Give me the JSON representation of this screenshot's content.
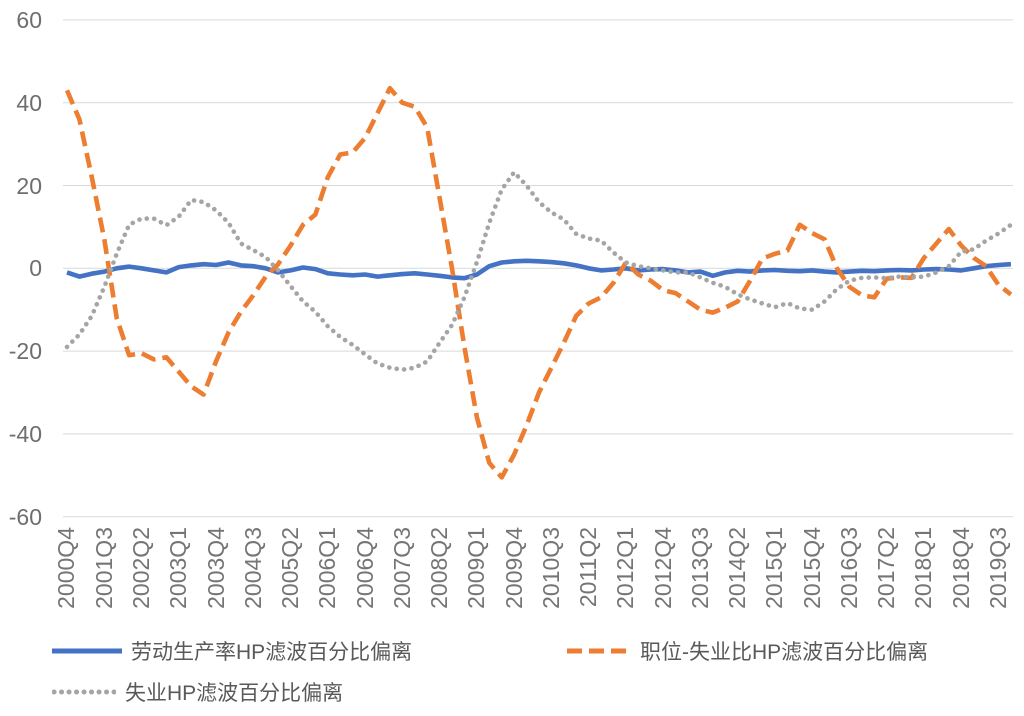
{
  "colors": {
    "background": "#ffffff",
    "gridline": "#d9d9d9",
    "axis_label_text": "#6e6e6e",
    "legend_text": "#595959",
    "series_blue": "#4472c4",
    "series_orange": "#ed7d31",
    "series_gray": "#a5a5a5"
  },
  "chart_data": {
    "type": "line",
    "title": "",
    "xlabel": "",
    "ylabel": "",
    "ylim": [
      -60,
      60
    ],
    "ytick_step": 20,
    "y_ticks": [
      60,
      40,
      20,
      0,
      -20,
      -40,
      -60
    ],
    "y_tick_labels": [
      "60",
      "40",
      "20",
      "0",
      "-20",
      "-40",
      "-60"
    ],
    "grid": "horizontal",
    "legend_position": "bottom",
    "x_tick_labels": [
      "2000Q4",
      "2001Q3",
      "2002Q2",
      "2003Q1",
      "2003Q4",
      "2004Q3",
      "2005Q2",
      "2006Q1",
      "2006Q4",
      "2007Q3",
      "2008Q2",
      "2009Q1",
      "2009Q4",
      "2010Q3",
      "2011Q2",
      "2012Q1",
      "2012Q4",
      "2013Q3",
      "2014Q2",
      "2015Q1",
      "2015Q4",
      "2016Q3",
      "2017Q2",
      "2018Q1",
      "2018Q4",
      "2019Q3"
    ],
    "x_tick_every_n_quarters": 3,
    "categories": [
      "2000Q4",
      "2001Q1",
      "2001Q2",
      "2001Q3",
      "2001Q4",
      "2002Q1",
      "2002Q2",
      "2002Q3",
      "2002Q4",
      "2003Q1",
      "2003Q2",
      "2003Q3",
      "2003Q4",
      "2004Q1",
      "2004Q2",
      "2004Q3",
      "2004Q4",
      "2005Q1",
      "2005Q2",
      "2005Q3",
      "2005Q4",
      "2006Q1",
      "2006Q2",
      "2006Q3",
      "2006Q4",
      "2007Q1",
      "2007Q2",
      "2007Q3",
      "2007Q4",
      "2008Q1",
      "2008Q2",
      "2008Q3",
      "2008Q4",
      "2009Q1",
      "2009Q2",
      "2009Q3",
      "2009Q4",
      "2010Q1",
      "2010Q2",
      "2010Q3",
      "2010Q4",
      "2011Q1",
      "2011Q2",
      "2011Q3",
      "2011Q4",
      "2012Q1",
      "2012Q2",
      "2012Q3",
      "2012Q4",
      "2013Q1",
      "2013Q2",
      "2013Q3",
      "2013Q4",
      "2014Q1",
      "2014Q2",
      "2014Q3",
      "2014Q4",
      "2015Q1",
      "2015Q2",
      "2015Q3",
      "2015Q4",
      "2016Q1",
      "2016Q2",
      "2016Q3",
      "2016Q4",
      "2017Q1",
      "2017Q2",
      "2017Q3",
      "2017Q4",
      "2018Q1",
      "2018Q2",
      "2018Q3",
      "2018Q4",
      "2019Q1",
      "2019Q2",
      "2019Q3",
      "2019Q4"
    ],
    "series": [
      {
        "name": "劳动生产率HP滤波百分比偏离",
        "color": "#4472c4",
        "line_style": "solid",
        "values": [
          -1,
          -2,
          -1.3,
          -0.8,
          0,
          0.4,
          0,
          -0.5,
          -1,
          0.3,
          0.7,
          1,
          0.8,
          1.4,
          0.7,
          0.5,
          0,
          -1,
          -0.5,
          0.2,
          -0.2,
          -1.2,
          -1.5,
          -1.7,
          -1.5,
          -2,
          -1.7,
          -1.4,
          -1.2,
          -1.5,
          -1.8,
          -2.2,
          -2.4,
          -1.5,
          0.5,
          1.4,
          1.7,
          1.8,
          1.7,
          1.5,
          1.2,
          0.7,
          0,
          -0.5,
          -0.3,
          0,
          -0.5,
          -0.3,
          -0.2,
          -0.5,
          -1,
          -0.8,
          -1.8,
          -1,
          -0.6,
          -0.8,
          -0.5,
          -0.4,
          -0.6,
          -0.7,
          -0.5,
          -0.8,
          -1,
          -0.8,
          -0.6,
          -0.7,
          -0.5,
          -0.4,
          -0.5,
          -0.3,
          -0.2,
          -0.3,
          -0.5,
          0,
          0.5,
          0.8,
          1
        ]
      },
      {
        "name": "职位-失业比HP滤波百分比偏离",
        "color": "#ed7d31",
        "line_style": "dashed",
        "values": [
          43,
          36,
          22,
          7,
          -12,
          -21,
          -20.5,
          -22,
          -21.5,
          -25,
          -28.5,
          -30.5,
          -22.5,
          -15.5,
          -10.5,
          -6.5,
          -2,
          1,
          5.5,
          10.5,
          13,
          22,
          27.5,
          28,
          31.5,
          37.5,
          43.5,
          40,
          39,
          34,
          17,
          0,
          -19,
          -36,
          -47,
          -50.5,
          -45,
          -38,
          -30,
          -24,
          -18,
          -11.5,
          -8.5,
          -7,
          -3.5,
          1.4,
          -1.5,
          -3,
          -5.3,
          -6,
          -8,
          -10,
          -10.7,
          -9.5,
          -8,
          -3,
          2.4,
          3.5,
          4.3,
          10.5,
          8.5,
          7,
          0,
          -4.5,
          -6.5,
          -7,
          -2.5,
          -2.2,
          -2.3,
          2.5,
          6,
          9.5,
          5.5,
          2.5,
          0.5,
          -4,
          -6.3
        ]
      },
      {
        "name": "失业HP滤波百分比偏离",
        "color": "#a5a5a5",
        "line_style": "dotted",
        "values": [
          -19,
          -16,
          -11.5,
          -4.5,
          3.5,
          10.5,
          12,
          12,
          10.4,
          12.5,
          16.5,
          16,
          14,
          11,
          6,
          4.4,
          2.7,
          -0.5,
          -4.3,
          -8,
          -10.5,
          -14,
          -16.6,
          -18.5,
          -20.8,
          -23,
          -24,
          -24.5,
          -24,
          -22.5,
          -18,
          -13.7,
          -7,
          1.5,
          11,
          19,
          23.2,
          20,
          16,
          13.5,
          11.8,
          8.3,
          7.2,
          6.7,
          3.8,
          1.4,
          0.5,
          0,
          -0.5,
          -1,
          -1,
          -2.2,
          -3.5,
          -4.5,
          -6.3,
          -7.5,
          -8.5,
          -9.4,
          -8.4,
          -9.7,
          -10,
          -8,
          -5,
          -3,
          -2.3,
          -2.2,
          -2.4,
          -2,
          -2.2,
          -2,
          -1,
          0.5,
          4,
          4.6,
          6.7,
          8.4,
          10.5
        ]
      }
    ]
  }
}
